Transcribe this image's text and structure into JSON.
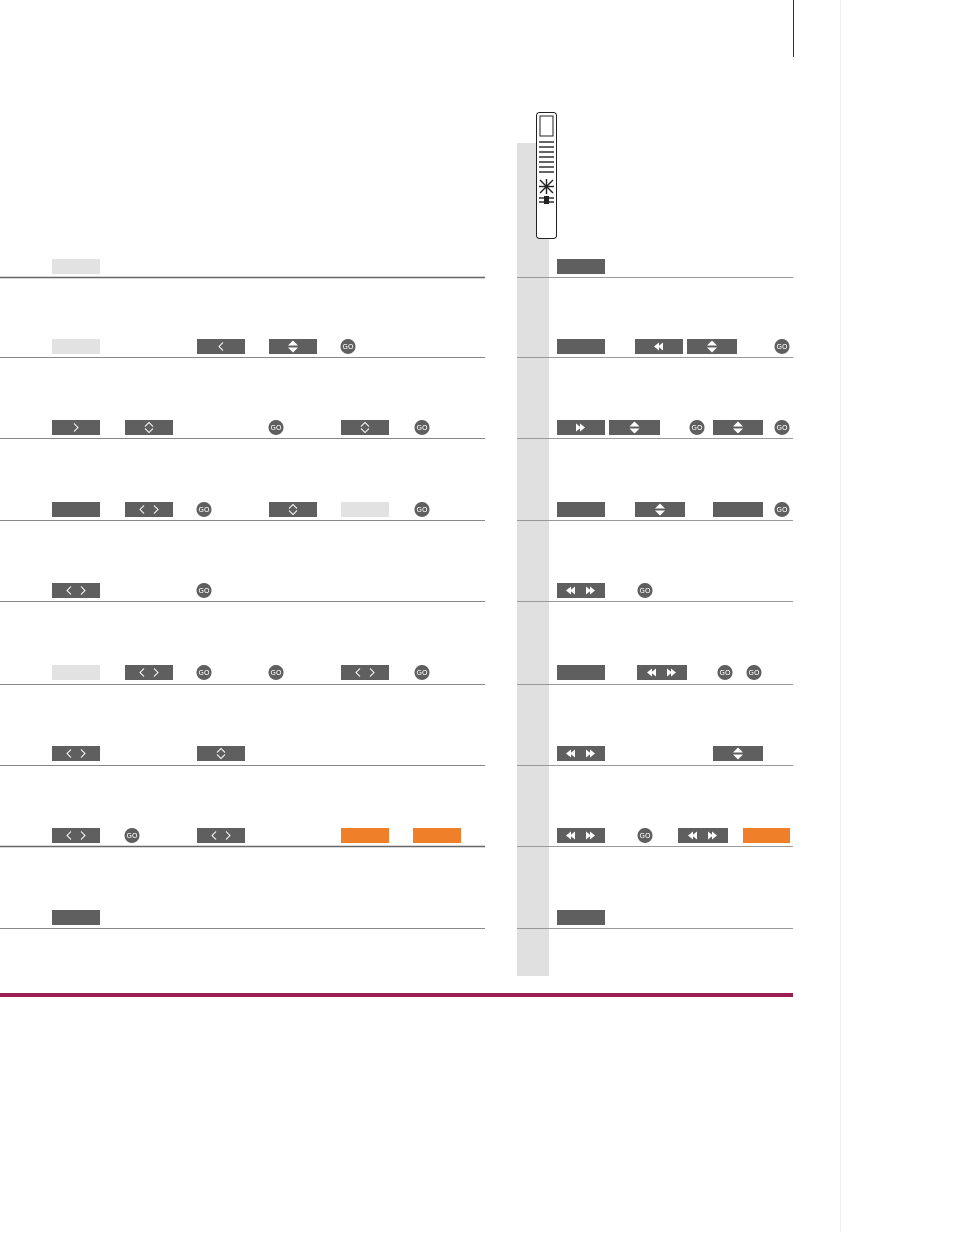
{
  "buttons": {
    "go": "GO"
  }
}
